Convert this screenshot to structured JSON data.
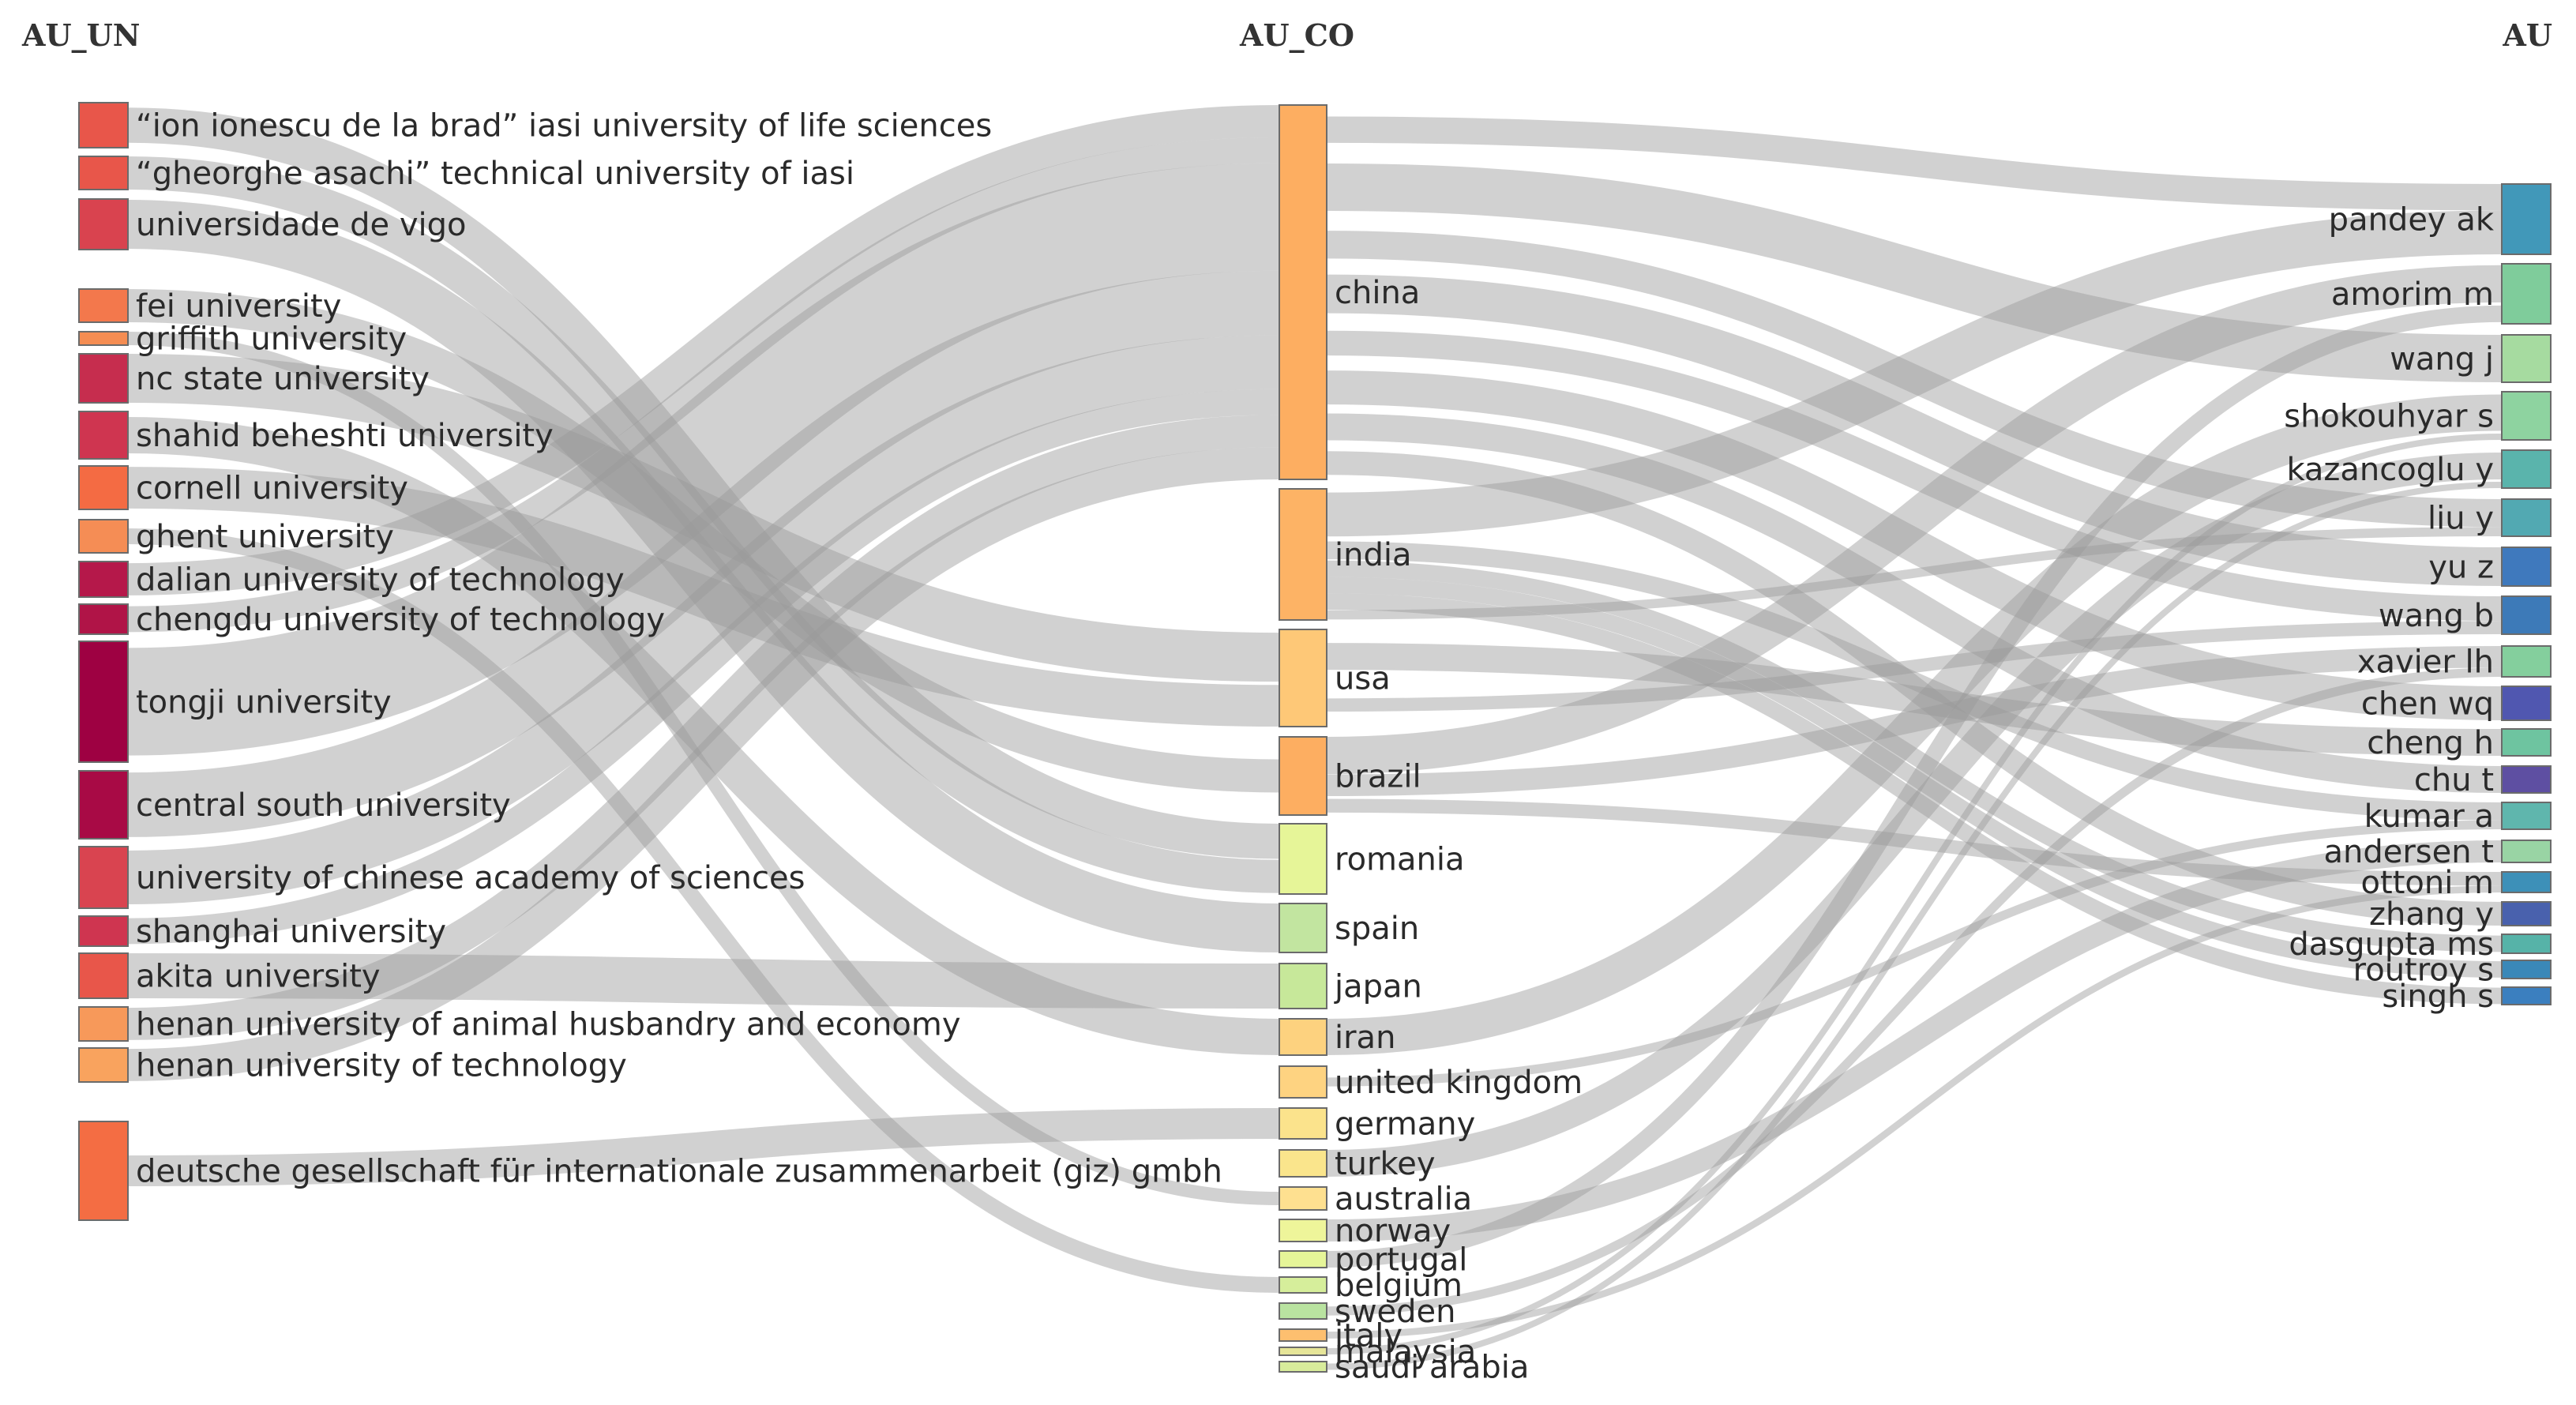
{
  "columns": [
    {
      "key": "AU_UN",
      "title": "AU_UN"
    },
    {
      "key": "AU_CO",
      "title": "AU_CO"
    },
    {
      "key": "AU",
      "title": "AU"
    }
  ],
  "nodes": {
    "AU_UN": [
      {
        "id": "un_iasi_life",
        "label": "“ion ionescu de la brad” iasi university of life sciences",
        "color": "#e8564a"
      },
      {
        "id": "un_iasi_tech",
        "label": "“gheorghe asachi” technical university of iasi",
        "color": "#e8564a"
      },
      {
        "id": "un_vigo",
        "label": "universidade de vigo",
        "color": "#d9434f"
      },
      {
        "id": "un_fei",
        "label": "fei university",
        "color": "#f3784c"
      },
      {
        "id": "un_griffith",
        "label": "griffith university",
        "color": "#f58d52"
      },
      {
        "id": "un_ncstate",
        "label": "nc state university",
        "color": "#c62d4e"
      },
      {
        "id": "un_beheshti",
        "label": "shahid beheshti university",
        "color": "#cf3550"
      },
      {
        "id": "un_cornell",
        "label": "cornell university",
        "color": "#f46b43"
      },
      {
        "id": "un_ghent",
        "label": "ghent university",
        "color": "#f58d55"
      },
      {
        "id": "un_dalian",
        "label": "dalian university of technology",
        "color": "#b5184a"
      },
      {
        "id": "un_chengdu",
        "label": "chengdu university of technology",
        "color": "#b01447"
      },
      {
        "id": "un_tongji",
        "label": "tongji university",
        "color": "#9e0142"
      },
      {
        "id": "un_centralsouth",
        "label": "central south university",
        "color": "#a80a45"
      },
      {
        "id": "un_ucas",
        "label": "university of chinese academy of sciences",
        "color": "#d94450"
      },
      {
        "id": "un_shanghai",
        "label": "shanghai university",
        "color": "#cf3550"
      },
      {
        "id": "un_akita",
        "label": "akita university",
        "color": "#e8564a"
      },
      {
        "id": "un_henan_animal",
        "label": "henan university of animal husbandry and economy",
        "color": "#f7995a"
      },
      {
        "id": "un_henan_tech",
        "label": "henan university of technology",
        "color": "#f9a35e"
      },
      {
        "id": "un_giz",
        "label": "deutsche gesellschaft für internationale zusammenarbeit (giz) gmbh",
        "color": "#f46d43"
      }
    ],
    "AU_CO": [
      {
        "id": "co_china",
        "label": "china",
        "color": "#fdae61"
      },
      {
        "id": "co_india",
        "label": "india",
        "color": "#fdb365"
      },
      {
        "id": "co_usa",
        "label": "usa",
        "color": "#fec877"
      },
      {
        "id": "co_brazil",
        "label": "brazil",
        "color": "#fdae61"
      },
      {
        "id": "co_romania",
        "label": "romania",
        "color": "#e6f598"
      },
      {
        "id": "co_spain",
        "label": "spain",
        "color": "#c2e5a0"
      },
      {
        "id": "co_japan",
        "label": "japan",
        "color": "#c7e89a"
      },
      {
        "id": "co_iran",
        "label": "iran",
        "color": "#fdd27f"
      },
      {
        "id": "co_uk",
        "label": "united kingdom",
        "color": "#fed381"
      },
      {
        "id": "co_germany",
        "label": "germany",
        "color": "#fbe38c"
      },
      {
        "id": "co_turkey",
        "label": "turkey",
        "color": "#fae58c"
      },
      {
        "id": "co_australia",
        "label": "australia",
        "color": "#fee090"
      },
      {
        "id": "co_norway",
        "label": "norway",
        "color": "#eef59a"
      },
      {
        "id": "co_portugal",
        "label": "portugal",
        "color": "#e6f598"
      },
      {
        "id": "co_belgium",
        "label": "belgium",
        "color": "#d6ee9b"
      },
      {
        "id": "co_sweden",
        "label": "sweden",
        "color": "#b9e3a0"
      },
      {
        "id": "co_italy",
        "label": "italy",
        "color": "#fdbf6f"
      },
      {
        "id": "co_malaysia",
        "label": "malaysia",
        "color": "#e6e598"
      },
      {
        "id": "co_saudi",
        "label": "saudi arabia",
        "color": "#d8ec9b"
      }
    ],
    "AU": [
      {
        "id": "au_pandey",
        "label": "pandey ak",
        "color": "#4198b9"
      },
      {
        "id": "au_amorim",
        "label": "amorim m",
        "color": "#7fcc9b"
      },
      {
        "id": "au_wangj",
        "label": "wang j",
        "color": "#a6dba0"
      },
      {
        "id": "au_shokouhyar",
        "label": "shokouhyar s",
        "color": "#8ed3a0"
      },
      {
        "id": "au_kazancoglu",
        "label": "kazancoglu y",
        "color": "#5ab4ac"
      },
      {
        "id": "au_liuy",
        "label": "liu y",
        "color": "#52a9b2"
      },
      {
        "id": "au_yuz",
        "label": "yu z",
        "color": "#3f79bd"
      },
      {
        "id": "au_wangb",
        "label": "wang b",
        "color": "#3d7ab8"
      },
      {
        "id": "au_xavier",
        "label": "xavier lh",
        "color": "#84cf9d"
      },
      {
        "id": "au_chenwq",
        "label": "chen wq",
        "color": "#5057b0"
      },
      {
        "id": "au_chengh",
        "label": "cheng h",
        "color": "#6ec4a0"
      },
      {
        "id": "au_chut",
        "label": "chu t",
        "color": "#5e4fa2"
      },
      {
        "id": "au_kumara",
        "label": "kumar a",
        "color": "#5fb6ad"
      },
      {
        "id": "au_andersen",
        "label": "andersen t",
        "color": "#99d4a4"
      },
      {
        "id": "au_ottoni",
        "label": "ottoni m",
        "color": "#3d90b8"
      },
      {
        "id": "au_zhangy",
        "label": "zhang y",
        "color": "#4961ad"
      },
      {
        "id": "au_dasgupta",
        "label": "dasgupta ms",
        "color": "#56b3a8"
      },
      {
        "id": "au_routroy",
        "label": "routroy s",
        "color": "#3a88b8"
      },
      {
        "id": "au_singh",
        "label": "singh s",
        "color": "#3b7fbf"
      }
    ]
  },
  "links_un_co": [
    [
      "un_iasi_life",
      "co_romania",
      2
    ],
    [
      "un_iasi_tech",
      "co_romania",
      2
    ],
    [
      "un_vigo",
      "co_spain",
      2
    ],
    [
      "un_fei",
      "co_brazil",
      1.5
    ],
    [
      "un_griffith",
      "co_australia",
      0.5
    ],
    [
      "un_ncstate",
      "co_usa",
      2
    ],
    [
      "un_beheshti",
      "co_iran",
      2
    ],
    [
      "un_cornell",
      "co_usa",
      1.5
    ],
    [
      "un_ghent",
      "co_belgium",
      1
    ],
    [
      "un_dalian",
      "co_china",
      1.5
    ],
    [
      "un_chengdu",
      "co_china",
      1.2
    ],
    [
      "un_tongji",
      "co_china",
      5
    ],
    [
      "un_centralsouth",
      "co_china",
      3
    ],
    [
      "un_ucas",
      "co_china",
      2.5
    ],
    [
      "un_shanghai",
      "co_china",
      1.2
    ],
    [
      "un_akita",
      "co_japan",
      2
    ],
    [
      "un_henan_animal",
      "co_china",
      1.5
    ],
    [
      "un_henan_tech",
      "co_china",
      1.5
    ],
    [
      "un_giz",
      "co_germany",
      4
    ]
  ],
  "links_co_au": [
    [
      "co_china",
      "au_pandey",
      1.5
    ],
    [
      "co_china",
      "au_wangj",
      2
    ],
    [
      "co_china",
      "au_liuy",
      1.5
    ],
    [
      "co_china",
      "au_yuz",
      1.5
    ],
    [
      "co_china",
      "au_wangb",
      1.5
    ],
    [
      "co_china",
      "au_chenwq",
      1.2
    ],
    [
      "co_china",
      "au_chut",
      1.2
    ],
    [
      "co_china",
      "au_zhangy",
      1
    ],
    [
      "co_india",
      "au_pandey",
      2.5
    ],
    [
      "co_india",
      "au_kumara",
      1
    ],
    [
      "co_india",
      "au_dasgupta",
      0.8
    ],
    [
      "co_india",
      "au_routroy",
      0.8
    ],
    [
      "co_india",
      "au_singh",
      0.8
    ],
    [
      "co_india",
      "au_liuy",
      0.5
    ],
    [
      "co_usa",
      "au_chengh",
      1
    ],
    [
      "co_usa",
      "au_wangb",
      0.8
    ],
    [
      "co_brazil",
      "au_amorim",
      2
    ],
    [
      "co_brazil",
      "au_xavier",
      1.2
    ],
    [
      "co_brazil",
      "au_ottoni",
      1
    ],
    [
      "co_iran",
      "au_shokouhyar",
      2
    ],
    [
      "co_turkey",
      "au_kazancoglu",
      1.5
    ],
    [
      "co_norway",
      "au_andersen",
      1
    ],
    [
      "co_portugal",
      "au_amorim",
      1
    ],
    [
      "co_uk",
      "au_kumara",
      0.5
    ],
    [
      "co_sweden",
      "au_xavier",
      0.5
    ],
    [
      "co_italy",
      "au_ottoni",
      0.5
    ],
    [
      "co_malaysia",
      "au_shokouhyar",
      0.3
    ],
    [
      "co_saudi",
      "au_kazancoglu",
      0.3
    ]
  ]
}
